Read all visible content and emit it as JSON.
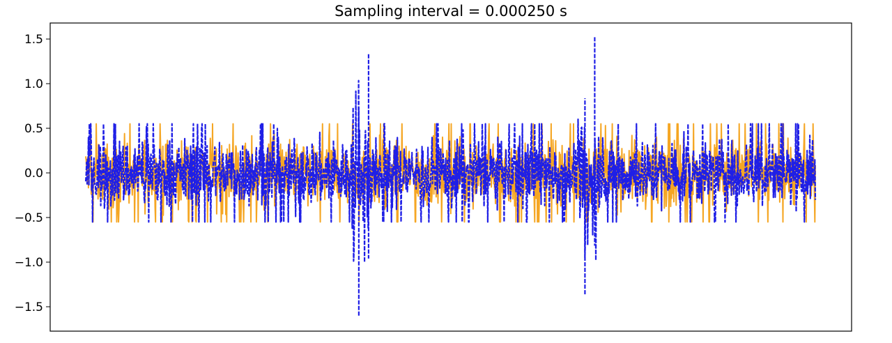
{
  "chart_data": {
    "type": "line",
    "title": "Sampling interval = 0.000250 s",
    "xlabel": "",
    "ylabel": "",
    "ylim": [
      -1.7,
      1.7
    ],
    "yticks": [
      1.5,
      1.0,
      0.5,
      0.0,
      -0.5,
      -1.0,
      -1.5
    ],
    "ytick_labels": [
      "1.5",
      "1.0",
      "0.5",
      "0.0",
      "−0.5",
      "−1.0",
      "−1.5"
    ],
    "x_axis_visible": false,
    "grid": false,
    "legend": "none",
    "series": [
      {
        "color": "#f5a623",
        "style": "solid",
        "typical_max": 0.55,
        "typical_min": -0.55,
        "peak_max": 0.87,
        "peak_min": -0.87
      },
      {
        "color": "#1f1fe6",
        "style": "dashed",
        "typical_max": 0.55,
        "typical_min": -0.55,
        "peak_max": 1.52,
        "peak_min": -1.6,
        "bursts": [
          {
            "center": 0.38,
            "max": 1.33,
            "min": -1.6
          },
          {
            "center": 0.69,
            "max": 1.52,
            "min": -1.36
          }
        ]
      }
    ]
  }
}
